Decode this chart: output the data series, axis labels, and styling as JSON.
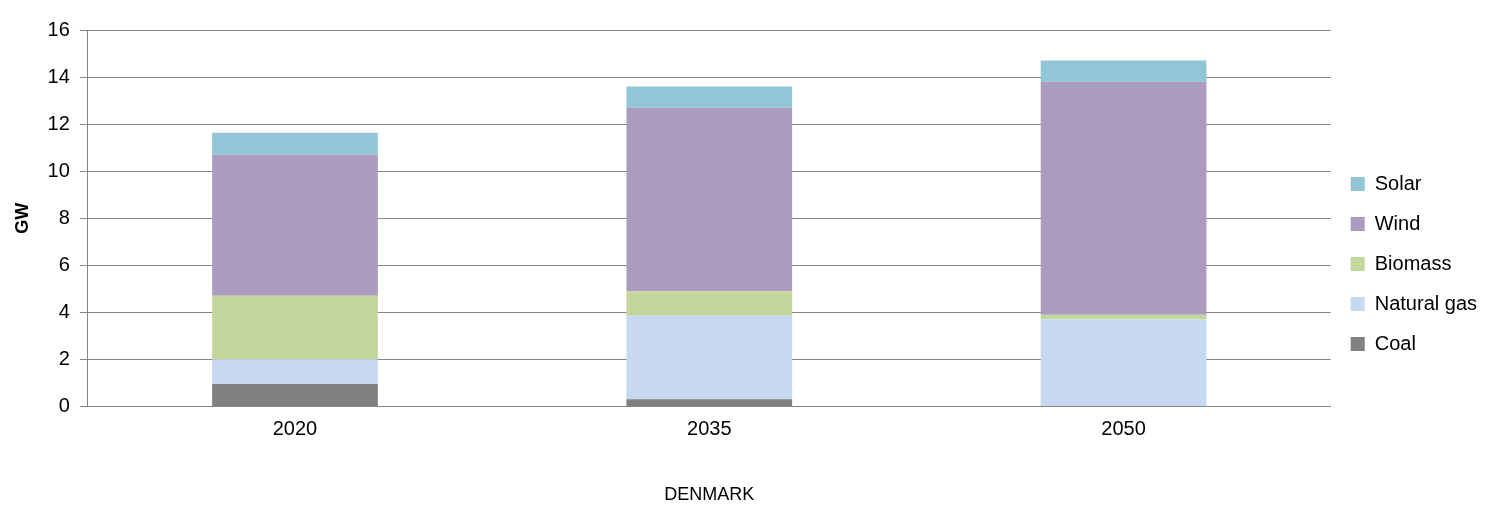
{
  "chart_data": {
    "type": "bar",
    "stacked": true,
    "xlabel": "DENMARK",
    "ylabel": "GW",
    "categories": [
      "2020",
      "2035",
      "2050"
    ],
    "series": [
      {
        "name": "Coal",
        "color": "#808080",
        "values": [
          0.95,
          0.3,
          0
        ]
      },
      {
        "name": "Natural gas",
        "color": "#c6d9f1",
        "values": [
          1.05,
          3.55,
          3.7
        ]
      },
      {
        "name": "Biomass",
        "color": "#c3d69b",
        "values": [
          2.7,
          1.05,
          0.2
        ]
      },
      {
        "name": "Wind",
        "color": "#aa9bbf",
        "values": [
          6.0,
          7.8,
          9.9
        ]
      },
      {
        "name": "Solar",
        "color": "#92c5d5",
        "values": [
          0.93,
          0.9,
          0.9
        ]
      }
    ],
    "ylim": [
      0,
      16
    ],
    "yticks": [
      0,
      2,
      4,
      6,
      8,
      10,
      12,
      14,
      16
    ],
    "grid": "y",
    "legend": "right"
  }
}
